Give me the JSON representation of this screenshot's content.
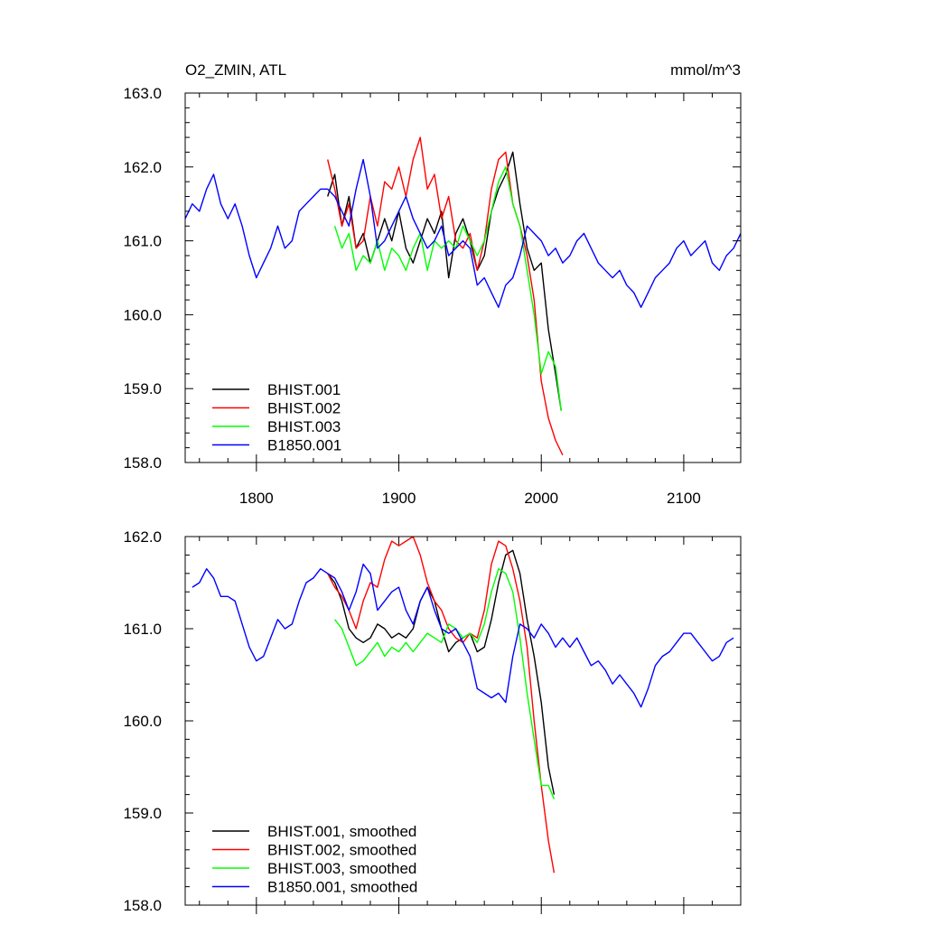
{
  "chart_data": [
    {
      "type": "line",
      "title": "O2_ZMIN, ATL",
      "units": "mmol/m^3",
      "xlim": [
        1750,
        2140
      ],
      "ylim": [
        158.0,
        163.0
      ],
      "x_ticks": [
        1800,
        1900,
        2000,
        2100
      ],
      "x_tick_labels": [
        "1800",
        "1900",
        "2000",
        "2100"
      ],
      "y_ticks": [
        158.0,
        159.0,
        160.0,
        161.0,
        162.0,
        163.0
      ],
      "y_tick_labels": [
        "158.0",
        "159.0",
        "160.0",
        "161.0",
        "162.0",
        "163.0"
      ],
      "legend_position": "bottom-left",
      "series": [
        {
          "name": "BHIST.001",
          "color": "#000000",
          "x": [
            1850,
            1855,
            1860,
            1865,
            1870,
            1875,
            1880,
            1885,
            1890,
            1895,
            1900,
            1905,
            1910,
            1915,
            1920,
            1925,
            1930,
            1935,
            1940,
            1945,
            1950,
            1955,
            1960,
            1965,
            1970,
            1975,
            1980,
            1985,
            1990,
            1995,
            2000,
            2005,
            2010,
            2014
          ],
          "y": [
            161.6,
            161.9,
            161.2,
            161.6,
            160.9,
            161.1,
            160.7,
            161.0,
            161.3,
            161.0,
            161.4,
            160.9,
            160.7,
            161.0,
            161.3,
            161.1,
            161.4,
            160.5,
            161.1,
            161.3,
            161.0,
            160.6,
            160.8,
            161.4,
            161.7,
            161.9,
            162.2,
            161.5,
            160.9,
            160.6,
            160.7,
            159.8,
            159.2,
            158.7
          ]
        },
        {
          "name": "BHIST.002",
          "color": "#ff0000",
          "x": [
            1850,
            1855,
            1860,
            1865,
            1870,
            1875,
            1880,
            1885,
            1890,
            1895,
            1900,
            1905,
            1910,
            1915,
            1920,
            1925,
            1930,
            1935,
            1940,
            1945,
            1950,
            1955,
            1960,
            1965,
            1970,
            1975,
            1980,
            1985,
            1990,
            1995,
            2000,
            2005,
            2010,
            2015
          ],
          "y": [
            162.1,
            161.7,
            161.2,
            161.5,
            160.9,
            161.0,
            161.6,
            161.2,
            161.8,
            161.7,
            162.0,
            161.6,
            162.1,
            162.4,
            161.7,
            161.9,
            161.3,
            161.6,
            161.0,
            160.9,
            161.1,
            160.6,
            161.0,
            161.7,
            162.1,
            162.2,
            161.5,
            161.2,
            160.8,
            160.2,
            159.1,
            158.6,
            158.3,
            158.1
          ]
        },
        {
          "name": "BHIST.003",
          "color": "#00ff00",
          "x": [
            1855,
            1860,
            1865,
            1870,
            1875,
            1880,
            1885,
            1890,
            1895,
            1900,
            1905,
            1910,
            1915,
            1920,
            1925,
            1930,
            1935,
            1940,
            1945,
            1950,
            1955,
            1960,
            1965,
            1970,
            1975,
            1980,
            1985,
            1990,
            1995,
            2000,
            2005,
            2010,
            2014
          ],
          "y": [
            161.2,
            160.9,
            161.1,
            160.6,
            160.8,
            160.7,
            161.0,
            160.6,
            160.9,
            160.8,
            160.6,
            160.9,
            161.1,
            160.6,
            161.0,
            160.9,
            161.0,
            160.9,
            161.2,
            161.0,
            160.8,
            161.0,
            161.4,
            161.8,
            162.0,
            161.5,
            161.2,
            160.6,
            160.0,
            159.2,
            159.5,
            159.3,
            158.7
          ]
        },
        {
          "name": "B1850.001",
          "color": "#0000ff",
          "x": [
            1750,
            1755,
            1760,
            1765,
            1770,
            1775,
            1780,
            1785,
            1790,
            1795,
            1800,
            1805,
            1810,
            1815,
            1820,
            1825,
            1830,
            1835,
            1840,
            1845,
            1850,
            1855,
            1860,
            1865,
            1870,
            1875,
            1880,
            1885,
            1890,
            1895,
            1900,
            1905,
            1910,
            1915,
            1920,
            1925,
            1930,
            1935,
            1940,
            1945,
            1950,
            1955,
            1960,
            1965,
            1970,
            1975,
            1980,
            1985,
            1990,
            1995,
            2000,
            2005,
            2010,
            2015,
            2020,
            2025,
            2030,
            2035,
            2040,
            2045,
            2050,
            2055,
            2060,
            2065,
            2070,
            2075,
            2080,
            2085,
            2090,
            2095,
            2100,
            2105,
            2110,
            2115,
            2120,
            2125,
            2130,
            2135,
            2140
          ],
          "y": [
            161.3,
            161.5,
            161.4,
            161.7,
            161.9,
            161.5,
            161.3,
            161.5,
            161.2,
            160.8,
            160.5,
            160.7,
            160.9,
            161.2,
            160.9,
            161.0,
            161.4,
            161.5,
            161.6,
            161.7,
            161.7,
            161.6,
            161.4,
            161.2,
            161.7,
            162.1,
            161.6,
            160.9,
            161.0,
            161.2,
            161.4,
            161.6,
            161.3,
            161.1,
            160.9,
            161.0,
            161.2,
            160.8,
            160.9,
            161.0,
            160.9,
            160.4,
            160.5,
            160.3,
            160.1,
            160.4,
            160.5,
            160.8,
            161.2,
            161.1,
            161.0,
            160.8,
            160.9,
            160.7,
            160.8,
            161.0,
            161.1,
            160.9,
            160.7,
            160.6,
            160.5,
            160.6,
            160.4,
            160.3,
            160.1,
            160.3,
            160.5,
            160.6,
            160.7,
            160.9,
            161.0,
            160.8,
            160.9,
            161.0,
            160.7,
            160.6,
            160.8,
            160.9,
            161.1
          ]
        }
      ]
    },
    {
      "type": "line",
      "xlim": [
        1750,
        2140
      ],
      "ylim": [
        158.0,
        162.0
      ],
      "x_ticks": [
        1800,
        1900,
        2000,
        2100
      ],
      "y_ticks": [
        158.0,
        159.0,
        160.0,
        161.0,
        162.0
      ],
      "y_tick_labels": [
        "158.0",
        "159.0",
        "160.0",
        "161.0",
        "162.0"
      ],
      "legend_position": "bottom-left",
      "series": [
        {
          "name": "BHIST.001, smoothed",
          "color": "#000000",
          "x": [
            1850,
            1855,
            1860,
            1865,
            1870,
            1875,
            1880,
            1885,
            1890,
            1895,
            1900,
            1905,
            1910,
            1915,
            1920,
            1925,
            1930,
            1935,
            1940,
            1945,
            1950,
            1955,
            1960,
            1965,
            1970,
            1975,
            1980,
            1985,
            1990,
            1995,
            2000,
            2005,
            2009
          ],
          "y": [
            161.6,
            161.5,
            161.3,
            161.0,
            160.9,
            160.85,
            160.9,
            161.05,
            161.0,
            160.9,
            160.95,
            160.9,
            161.0,
            161.3,
            161.45,
            161.3,
            161.0,
            160.75,
            160.85,
            160.9,
            160.95,
            160.75,
            160.8,
            161.1,
            161.5,
            161.8,
            161.85,
            161.6,
            161.1,
            160.7,
            160.2,
            159.5,
            159.2
          ]
        },
        {
          "name": "BHIST.002, smoothed",
          "color": "#ff0000",
          "x": [
            1850,
            1855,
            1860,
            1865,
            1870,
            1875,
            1880,
            1885,
            1890,
            1895,
            1900,
            1905,
            1910,
            1915,
            1920,
            1925,
            1930,
            1935,
            1940,
            1945,
            1950,
            1955,
            1960,
            1965,
            1970,
            1975,
            1980,
            1985,
            1990,
            1995,
            2000,
            2005,
            2009
          ],
          "y": [
            161.6,
            161.45,
            161.35,
            161.2,
            161.0,
            161.3,
            161.5,
            161.45,
            161.75,
            161.95,
            161.9,
            161.95,
            162.0,
            161.8,
            161.5,
            161.3,
            161.2,
            161.0,
            160.9,
            160.85,
            160.95,
            160.9,
            161.2,
            161.7,
            161.95,
            161.9,
            161.65,
            161.3,
            160.8,
            160.0,
            159.3,
            158.7,
            158.35
          ]
        },
        {
          "name": "BHIST.003, smoothed",
          "color": "#00ff00",
          "x": [
            1855,
            1860,
            1865,
            1870,
            1875,
            1880,
            1885,
            1890,
            1895,
            1900,
            1905,
            1910,
            1915,
            1920,
            1925,
            1930,
            1935,
            1940,
            1945,
            1950,
            1955,
            1960,
            1965,
            1970,
            1975,
            1980,
            1985,
            1990,
            1995,
            2000,
            2005,
            2009
          ],
          "y": [
            161.1,
            161.0,
            160.8,
            160.6,
            160.65,
            160.75,
            160.85,
            160.7,
            160.8,
            160.75,
            160.85,
            160.75,
            160.85,
            160.95,
            160.9,
            160.85,
            161.05,
            161.0,
            160.9,
            160.95,
            160.85,
            161.05,
            161.4,
            161.65,
            161.6,
            161.4,
            160.9,
            160.3,
            159.8,
            159.3,
            159.3,
            159.15
          ]
        },
        {
          "name": "B1850.001, smoothed",
          "color": "#0000ff",
          "x": [
            1755,
            1760,
            1765,
            1770,
            1775,
            1780,
            1785,
            1790,
            1795,
            1800,
            1805,
            1810,
            1815,
            1820,
            1825,
            1830,
            1835,
            1840,
            1845,
            1850,
            1855,
            1860,
            1865,
            1870,
            1875,
            1880,
            1885,
            1890,
            1895,
            1900,
            1905,
            1910,
            1915,
            1920,
            1925,
            1930,
            1935,
            1940,
            1945,
            1950,
            1955,
            1960,
            1965,
            1970,
            1975,
            1980,
            1985,
            1990,
            1995,
            2000,
            2005,
            2010,
            2015,
            2020,
            2025,
            2030,
            2035,
            2040,
            2045,
            2050,
            2055,
            2060,
            2065,
            2070,
            2075,
            2080,
            2085,
            2090,
            2095,
            2100,
            2105,
            2110,
            2115,
            2120,
            2125,
            2130,
            2135
          ],
          "y": [
            161.45,
            161.5,
            161.65,
            161.55,
            161.35,
            161.35,
            161.3,
            161.05,
            160.8,
            160.65,
            160.7,
            160.9,
            161.1,
            161.0,
            161.05,
            161.3,
            161.5,
            161.55,
            161.65,
            161.6,
            161.55,
            161.4,
            161.2,
            161.4,
            161.7,
            161.6,
            161.2,
            161.3,
            161.4,
            161.45,
            161.2,
            161.05,
            161.3,
            161.45,
            161.2,
            161.0,
            160.95,
            161.0,
            160.85,
            160.7,
            160.35,
            160.3,
            160.25,
            160.3,
            160.2,
            160.7,
            161.05,
            161.0,
            160.9,
            161.05,
            160.95,
            160.8,
            160.9,
            160.8,
            160.9,
            160.75,
            160.6,
            160.65,
            160.55,
            160.4,
            160.5,
            160.4,
            160.3,
            160.15,
            160.35,
            160.6,
            160.7,
            160.75,
            160.85,
            160.95,
            160.95,
            160.85,
            160.75,
            160.65,
            160.7,
            160.85,
            160.9
          ]
        }
      ]
    }
  ]
}
